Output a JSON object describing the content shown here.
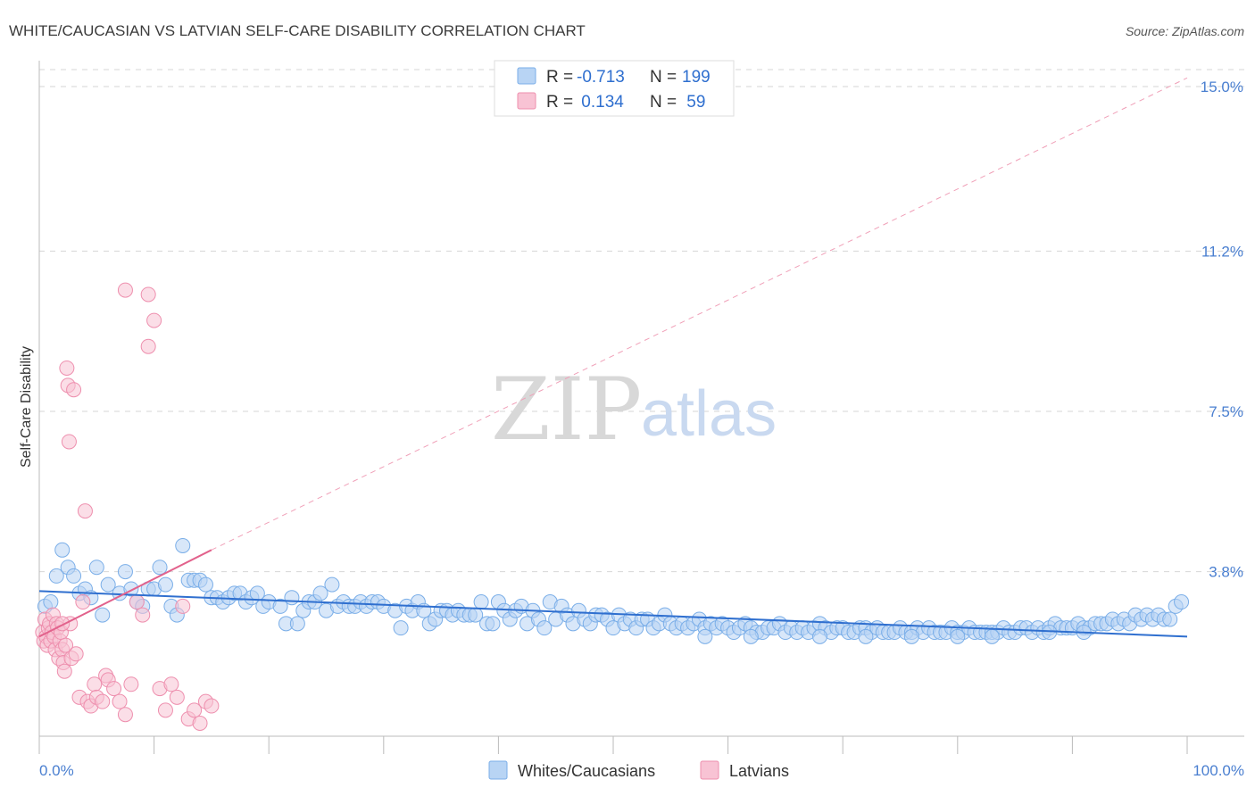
{
  "chart_data": {
    "type": "scatter",
    "title": "WHITE/CAUCASIAN VS LATVIAN SELF-CARE DISABILITY CORRELATION CHART",
    "source": "Source: ZipAtlas.com",
    "ylabel": "Self-Care Disability",
    "xlim": [
      0,
      100
    ],
    "ylim": [
      0,
      15.0
    ],
    "x_tick_labels": {
      "left": "0.0%",
      "right": "100.0%"
    },
    "y_ticks": [
      {
        "value": 3.8,
        "label": "3.8%"
      },
      {
        "value": 7.5,
        "label": "7.5%"
      },
      {
        "value": 11.2,
        "label": "11.2%"
      },
      {
        "value": 15.0,
        "label": "15.0%"
      }
    ],
    "watermark": {
      "part1": "ZIP",
      "part2": "atlas"
    },
    "legend_stats": [
      {
        "r_label": "R =",
        "r_value": "-0.713",
        "n_label": "N =",
        "n_value": "199"
      },
      {
        "r_label": "R =",
        "r_value": " 0.134",
        "n_label": "N =",
        "n_value": " 59"
      }
    ],
    "series": [
      {
        "name": "Whites/Caucasians",
        "color": "#7aaee8",
        "fill": "#b8d4f4",
        "trend": {
          "x0": 0,
          "y0": 3.35,
          "x1": 100,
          "y1": 2.3
        },
        "points": [
          [
            0.5,
            3.0
          ],
          [
            1,
            3.1
          ],
          [
            1.5,
            3.7
          ],
          [
            2,
            4.3
          ],
          [
            2.5,
            3.9
          ],
          [
            3,
            3.7
          ],
          [
            3.5,
            3.3
          ],
          [
            4,
            3.4
          ],
          [
            4.5,
            3.2
          ],
          [
            5,
            3.9
          ],
          [
            5.5,
            2.8
          ],
          [
            6,
            3.5
          ],
          [
            7,
            3.3
          ],
          [
            7.5,
            3.8
          ],
          [
            8,
            3.4
          ],
          [
            8.5,
            3.1
          ],
          [
            9,
            3.0
          ],
          [
            9.5,
            3.4
          ],
          [
            10,
            3.4
          ],
          [
            10.5,
            3.9
          ],
          [
            11,
            3.5
          ],
          [
            11.5,
            3.0
          ],
          [
            12,
            2.8
          ],
          [
            12.5,
            4.4
          ],
          [
            13,
            3.6
          ],
          [
            13.5,
            3.6
          ],
          [
            14,
            3.6
          ],
          [
            14.5,
            3.5
          ],
          [
            15,
            3.2
          ],
          [
            15.5,
            3.2
          ],
          [
            16,
            3.1
          ],
          [
            16.5,
            3.2
          ],
          [
            17,
            3.3
          ],
          [
            17.5,
            3.3
          ],
          [
            18,
            3.1
          ],
          [
            18.5,
            3.2
          ],
          [
            19,
            3.3
          ],
          [
            19.5,
            3.0
          ],
          [
            20,
            3.1
          ],
          [
            21,
            3.0
          ],
          [
            21.5,
            2.6
          ],
          [
            22,
            3.2
          ],
          [
            22.5,
            2.6
          ],
          [
            23,
            2.9
          ],
          [
            23.5,
            3.1
          ],
          [
            24,
            3.1
          ],
          [
            24.5,
            3.3
          ],
          [
            25,
            2.9
          ],
          [
            25.5,
            3.5
          ],
          [
            26,
            3.0
          ],
          [
            26.5,
            3.1
          ],
          [
            27,
            3.0
          ],
          [
            27.5,
            3.0
          ],
          [
            28,
            3.1
          ],
          [
            28.5,
            3.0
          ],
          [
            29,
            3.1
          ],
          [
            29.5,
            3.1
          ],
          [
            30,
            3.0
          ],
          [
            31,
            2.9
          ],
          [
            31.5,
            2.5
          ],
          [
            32,
            3.0
          ],
          [
            32.5,
            2.9
          ],
          [
            33,
            3.1
          ],
          [
            33.5,
            2.9
          ],
          [
            34,
            2.6
          ],
          [
            34.5,
            2.7
          ],
          [
            35,
            2.9
          ],
          [
            35.5,
            2.9
          ],
          [
            36,
            2.8
          ],
          [
            36.5,
            2.9
          ],
          [
            37,
            2.8
          ],
          [
            37.5,
            2.8
          ],
          [
            38,
            2.8
          ],
          [
            38.5,
            3.1
          ],
          [
            39,
            2.6
          ],
          [
            39.5,
            2.6
          ],
          [
            40,
            3.1
          ],
          [
            40.5,
            2.9
          ],
          [
            41,
            2.7
          ],
          [
            41.5,
            2.9
          ],
          [
            42,
            3.0
          ],
          [
            42.5,
            2.6
          ],
          [
            43,
            2.9
          ],
          [
            43.5,
            2.7
          ],
          [
            44,
            2.5
          ],
          [
            44.5,
            3.1
          ],
          [
            45,
            2.7
          ],
          [
            45.5,
            3.0
          ],
          [
            46,
            2.8
          ],
          [
            46.5,
            2.6
          ],
          [
            47,
            2.9
          ],
          [
            47.5,
            2.7
          ],
          [
            48,
            2.6
          ],
          [
            48.5,
            2.8
          ],
          [
            49,
            2.8
          ],
          [
            49.5,
            2.7
          ],
          [
            50,
            2.5
          ],
          [
            50.5,
            2.8
          ],
          [
            51,
            2.6
          ],
          [
            51.5,
            2.7
          ],
          [
            52,
            2.5
          ],
          [
            52.5,
            2.7
          ],
          [
            53,
            2.7
          ],
          [
            53.5,
            2.5
          ],
          [
            54,
            2.6
          ],
          [
            54.5,
            2.8
          ],
          [
            55,
            2.6
          ],
          [
            55.5,
            2.5
          ],
          [
            56,
            2.6
          ],
          [
            56.5,
            2.5
          ],
          [
            57,
            2.6
          ],
          [
            57.5,
            2.7
          ],
          [
            58,
            2.5
          ],
          [
            58.5,
            2.6
          ],
          [
            59,
            2.5
          ],
          [
            59.5,
            2.6
          ],
          [
            60,
            2.5
          ],
          [
            60.5,
            2.4
          ],
          [
            61,
            2.5
          ],
          [
            61.5,
            2.6
          ],
          [
            62,
            2.5
          ],
          [
            62.5,
            2.4
          ],
          [
            63,
            2.4
          ],
          [
            63.5,
            2.5
          ],
          [
            64,
            2.5
          ],
          [
            64.5,
            2.6
          ],
          [
            65,
            2.4
          ],
          [
            65.5,
            2.5
          ],
          [
            66,
            2.4
          ],
          [
            66.5,
            2.5
          ],
          [
            67,
            2.4
          ],
          [
            67.5,
            2.5
          ],
          [
            68,
            2.6
          ],
          [
            68.5,
            2.5
          ],
          [
            69,
            2.4
          ],
          [
            69.5,
            2.5
          ],
          [
            70,
            2.5
          ],
          [
            70.5,
            2.4
          ],
          [
            71,
            2.4
          ],
          [
            71.5,
            2.5
          ],
          [
            72,
            2.5
          ],
          [
            72.5,
            2.4
          ],
          [
            73,
            2.5
          ],
          [
            73.5,
            2.4
          ],
          [
            74,
            2.4
          ],
          [
            74.5,
            2.4
          ],
          [
            75,
            2.5
          ],
          [
            75.5,
            2.4
          ],
          [
            76,
            2.4
          ],
          [
            76.5,
            2.5
          ],
          [
            77,
            2.4
          ],
          [
            77.5,
            2.5
          ],
          [
            78,
            2.4
          ],
          [
            78.5,
            2.4
          ],
          [
            79,
            2.4
          ],
          [
            79.5,
            2.5
          ],
          [
            80,
            2.4
          ],
          [
            80.5,
            2.4
          ],
          [
            81,
            2.5
          ],
          [
            81.5,
            2.4
          ],
          [
            82,
            2.4
          ],
          [
            82.5,
            2.4
          ],
          [
            83,
            2.4
          ],
          [
            83.5,
            2.4
          ],
          [
            84,
            2.5
          ],
          [
            84.5,
            2.4
          ],
          [
            85,
            2.4
          ],
          [
            85.5,
            2.5
          ],
          [
            86,
            2.5
          ],
          [
            86.5,
            2.4
          ],
          [
            87,
            2.5
          ],
          [
            87.5,
            2.4
          ],
          [
            88,
            2.5
          ],
          [
            88.5,
            2.6
          ],
          [
            89,
            2.5
          ],
          [
            89.5,
            2.5
          ],
          [
            90,
            2.5
          ],
          [
            90.5,
            2.6
          ],
          [
            91,
            2.5
          ],
          [
            91.5,
            2.5
          ],
          [
            92,
            2.6
          ],
          [
            92.5,
            2.6
          ],
          [
            93,
            2.6
          ],
          [
            93.5,
            2.7
          ],
          [
            94,
            2.6
          ],
          [
            94.5,
            2.7
          ],
          [
            95,
            2.6
          ],
          [
            95.5,
            2.8
          ],
          [
            96,
            2.7
          ],
          [
            96.5,
            2.8
          ],
          [
            97,
            2.7
          ],
          [
            97.5,
            2.8
          ],
          [
            98,
            2.7
          ],
          [
            98.5,
            2.7
          ],
          [
            99,
            3.0
          ],
          [
            99.5,
            3.1
          ],
          [
            58,
            2.3
          ],
          [
            62,
            2.3
          ],
          [
            68,
            2.3
          ],
          [
            72,
            2.3
          ],
          [
            76,
            2.3
          ],
          [
            80,
            2.3
          ],
          [
            83,
            2.3
          ],
          [
            88,
            2.4
          ],
          [
            91,
            2.4
          ]
        ]
      },
      {
        "name": "Latvians",
        "color": "#ee8fae",
        "fill": "#f8c3d4",
        "trend": {
          "x0": 0,
          "y0": 2.3,
          "x1": 15,
          "y1": 4.3
        },
        "extrapolated_trend": {
          "x0": 15,
          "y0": 4.3,
          "x1": 100,
          "y1": 15.2
        },
        "points": [
          [
            0.3,
            2.4
          ],
          [
            0.4,
            2.2
          ],
          [
            0.5,
            2.7
          ],
          [
            0.6,
            2.3
          ],
          [
            0.7,
            2.1
          ],
          [
            0.8,
            2.5
          ],
          [
            0.9,
            2.6
          ],
          [
            1.0,
            2.2
          ],
          [
            1.1,
            2.4
          ],
          [
            1.2,
            2.8
          ],
          [
            1.3,
            2.3
          ],
          [
            1.4,
            2.0
          ],
          [
            1.5,
            2.6
          ],
          [
            1.6,
            2.5
          ],
          [
            1.7,
            1.8
          ],
          [
            1.8,
            2.2
          ],
          [
            1.9,
            2.4
          ],
          [
            2.0,
            2.0
          ],
          [
            2.1,
            1.7
          ],
          [
            2.2,
            1.5
          ],
          [
            2.3,
            2.1
          ],
          [
            2.4,
            8.5
          ],
          [
            2.5,
            8.1
          ],
          [
            2.6,
            6.8
          ],
          [
            2.7,
            2.6
          ],
          [
            2.8,
            1.8
          ],
          [
            3.0,
            8.0
          ],
          [
            3.2,
            1.9
          ],
          [
            3.5,
            0.9
          ],
          [
            3.8,
            3.1
          ],
          [
            4.0,
            5.2
          ],
          [
            4.2,
            0.8
          ],
          [
            4.5,
            0.7
          ],
          [
            4.8,
            1.2
          ],
          [
            5.0,
            0.9
          ],
          [
            5.5,
            0.8
          ],
          [
            5.8,
            1.4
          ],
          [
            6.0,
            1.3
          ],
          [
            6.5,
            1.1
          ],
          [
            7.0,
            0.8
          ],
          [
            7.5,
            0.5
          ],
          [
            8.0,
            1.2
          ],
          [
            8.5,
            3.1
          ],
          [
            9.0,
            2.8
          ],
          [
            9.5,
            9.0
          ],
          [
            10,
            9.6
          ],
          [
            10.5,
            1.1
          ],
          [
            11,
            0.6
          ],
          [
            11.5,
            1.2
          ],
          [
            12,
            0.9
          ],
          [
            12.5,
            3.0
          ],
          [
            13,
            0.4
          ],
          [
            13.5,
            0.6
          ],
          [
            14,
            0.3
          ],
          [
            14.5,
            0.8
          ],
          [
            15,
            0.7
          ],
          [
            7.5,
            10.3
          ],
          [
            9.5,
            10.2
          ],
          [
            2.0,
            2.6
          ]
        ]
      }
    ]
  },
  "bottom_legend": [
    {
      "label": "Whites/Caucasians"
    },
    {
      "label": "Latvians"
    }
  ]
}
